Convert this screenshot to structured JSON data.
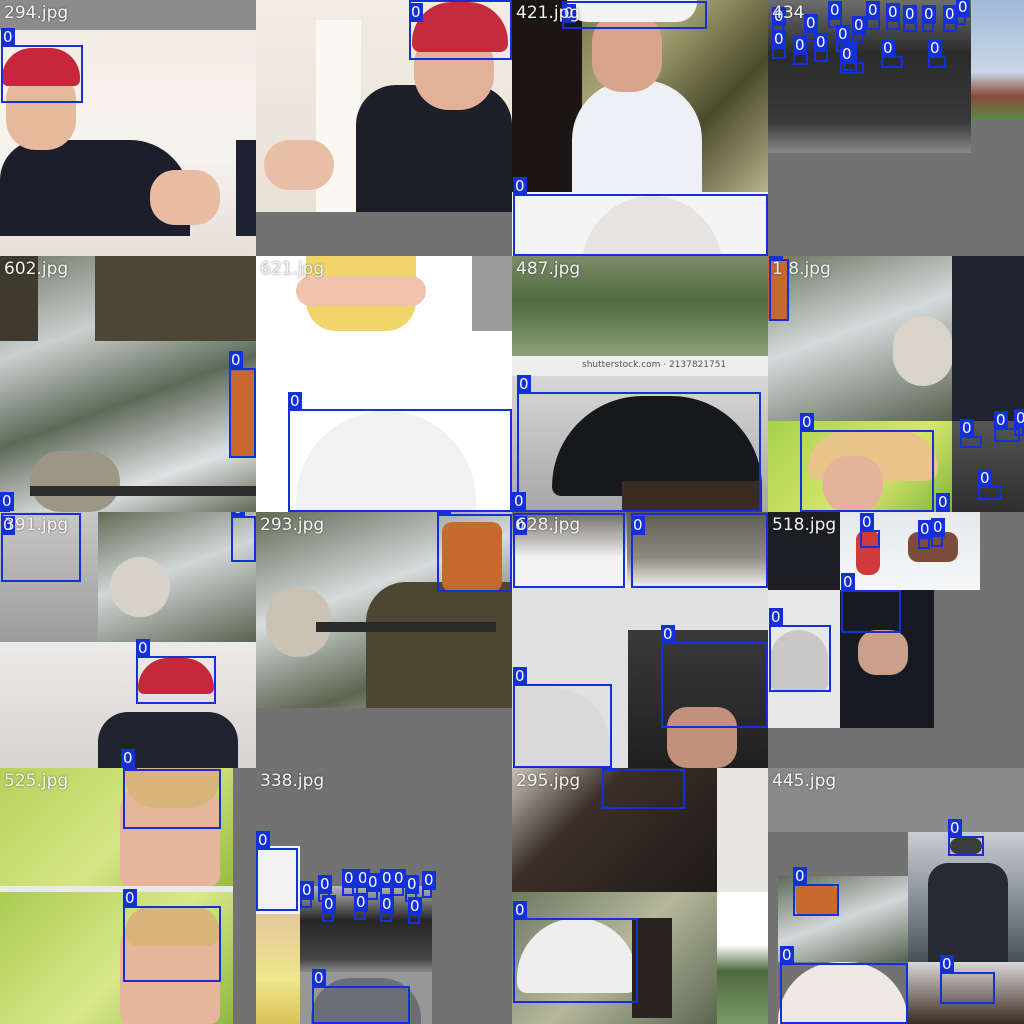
{
  "colors": {
    "background": "#727272",
    "box": "#1430d8",
    "box_label_text": "#ffffff",
    "filename_text": "#f2f2f2"
  },
  "tiles": [
    {
      "name": "294.jpg",
      "boxes": [
        {
          "label": "0"
        }
      ]
    },
    {
      "name": "",
      "boxes": [
        {
          "label": "0"
        }
      ]
    },
    {
      "name": "421.jpg",
      "boxes": [
        {
          "label": "0"
        },
        {
          "label": "0"
        }
      ]
    },
    {
      "name": "434",
      "boxes": [
        {
          "label": "0"
        },
        {
          "label": "0"
        },
        {
          "label": "0"
        },
        {
          "label": "0"
        },
        {
          "label": "0"
        },
        {
          "label": "0"
        },
        {
          "label": "0"
        },
        {
          "label": "0"
        },
        {
          "label": "0"
        },
        {
          "label": "0"
        },
        {
          "label": "0"
        },
        {
          "label": "0"
        },
        {
          "label": "0"
        },
        {
          "label": "0"
        },
        {
          "label": "0"
        },
        {
          "label": "0"
        },
        {
          "label": "0"
        },
        {
          "label": "0"
        }
      ]
    },
    {
      "name": "602.jpg",
      "boxes": [
        {
          "label": "0"
        },
        {
          "label": "0"
        }
      ]
    },
    {
      "name": "621.jpg",
      "boxes": [
        {
          "label": "0"
        }
      ]
    },
    {
      "name": "487.jpg",
      "watermark": "shutterstock.com · 2137821751",
      "boxes": [
        {
          "label": "0"
        },
        {
          "label": "0"
        }
      ]
    },
    {
      "name": "1 8.jpg",
      "boxes": [
        {
          "label": "0"
        },
        {
          "label": "0"
        },
        {
          "label": "0"
        },
        {
          "label": "0"
        },
        {
          "label": "0"
        },
        {
          "label": "0"
        },
        {
          "label": "0"
        }
      ]
    },
    {
      "name": "391.jpg",
      "boxes": [
        {
          "label": "0"
        },
        {
          "label": "0"
        },
        {
          "label": "0"
        },
        {
          "label": "0"
        }
      ]
    },
    {
      "name": "293.jpg",
      "boxes": [
        {
          "label": "0"
        }
      ]
    },
    {
      "name": "628.jpg",
      "boxes": [
        {
          "label": "0"
        },
        {
          "label": "0"
        },
        {
          "label": "0"
        },
        {
          "label": "0"
        }
      ]
    },
    {
      "name": "518.jpg",
      "boxes": [
        {
          "label": "0"
        },
        {
          "label": "0"
        },
        {
          "label": "0"
        },
        {
          "label": "0"
        },
        {
          "label": "0"
        }
      ]
    },
    {
      "name": "525.jpg",
      "boxes": [
        {
          "label": "0"
        },
        {
          "label": "0"
        }
      ]
    },
    {
      "name": "338.jpg",
      "boxes": [
        {
          "label": "0"
        },
        {
          "label": "0"
        },
        {
          "label": "0"
        },
        {
          "label": "0"
        },
        {
          "label": "0"
        },
        {
          "label": "0"
        },
        {
          "label": "0"
        },
        {
          "label": "0"
        },
        {
          "label": "0"
        },
        {
          "label": "0"
        },
        {
          "label": "0"
        },
        {
          "label": "0"
        },
        {
          "label": "0"
        },
        {
          "label": "0"
        },
        {
          "label": "0"
        }
      ]
    },
    {
      "name": "295.jpg",
      "boxes": [
        {
          "label": "0"
        },
        {
          "label": "0"
        }
      ]
    },
    {
      "name": "445.jpg",
      "boxes": [
        {
          "label": "0"
        },
        {
          "label": "0"
        },
        {
          "label": "0"
        },
        {
          "label": "0"
        }
      ]
    }
  ]
}
